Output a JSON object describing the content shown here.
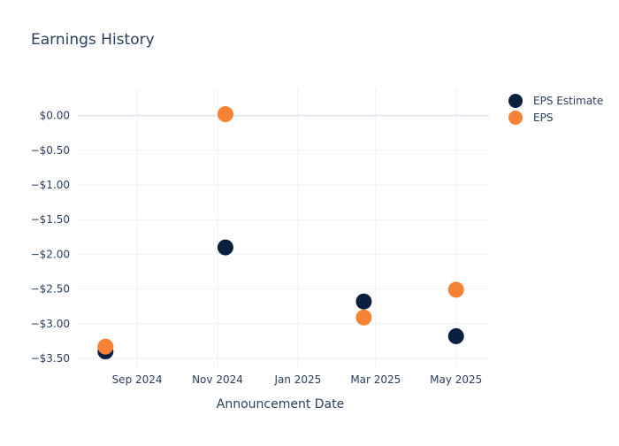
{
  "chart_data": {
    "type": "scatter",
    "title": "Earnings History",
    "xlabel": "Announcement Date",
    "ylabel": "",
    "x_ticks": [
      {
        "date": "2024-09-01",
        "label": "Sep 2024"
      },
      {
        "date": "2024-11-01",
        "label": "Nov 2024"
      },
      {
        "date": "2025-01-01",
        "label": "Jan 2025"
      },
      {
        "date": "2025-03-01",
        "label": "Mar 2025"
      },
      {
        "date": "2025-05-01",
        "label": "May 2025"
      }
    ],
    "y_ticks": [
      {
        "value": 0,
        "label": "$0.00"
      },
      {
        "value": -0.5,
        "label": "−$0.50"
      },
      {
        "value": -1.0,
        "label": "−$1.00"
      },
      {
        "value": -1.5,
        "label": "−$1.50"
      },
      {
        "value": -2.0,
        "label": "−$2.00"
      },
      {
        "value": -2.5,
        "label": "−$2.50"
      },
      {
        "value": -3.0,
        "label": "−$3.00"
      },
      {
        "value": -3.5,
        "label": "−$3.50"
      }
    ],
    "xlim": [
      "2024-07-18",
      "2025-05-26"
    ],
    "ylim": [
      -3.64,
      0.39
    ],
    "grid": true,
    "legend_position": "top-right",
    "series": [
      {
        "name": "EPS Estimate",
        "color": "#0b1f3f",
        "points": [
          {
            "date": "2024-08-08",
            "value": -3.4
          },
          {
            "date": "2024-11-07",
            "value": -1.9
          },
          {
            "date": "2025-02-20",
            "value": -2.68
          },
          {
            "date": "2025-05-01",
            "value": -3.18
          }
        ]
      },
      {
        "name": "EPS",
        "color": "#f58235",
        "points": [
          {
            "date": "2024-08-08",
            "value": -3.33
          },
          {
            "date": "2024-11-07",
            "value": 0.02
          },
          {
            "date": "2025-02-20",
            "value": -2.91
          },
          {
            "date": "2025-05-01",
            "value": -2.51
          }
        ]
      }
    ]
  }
}
